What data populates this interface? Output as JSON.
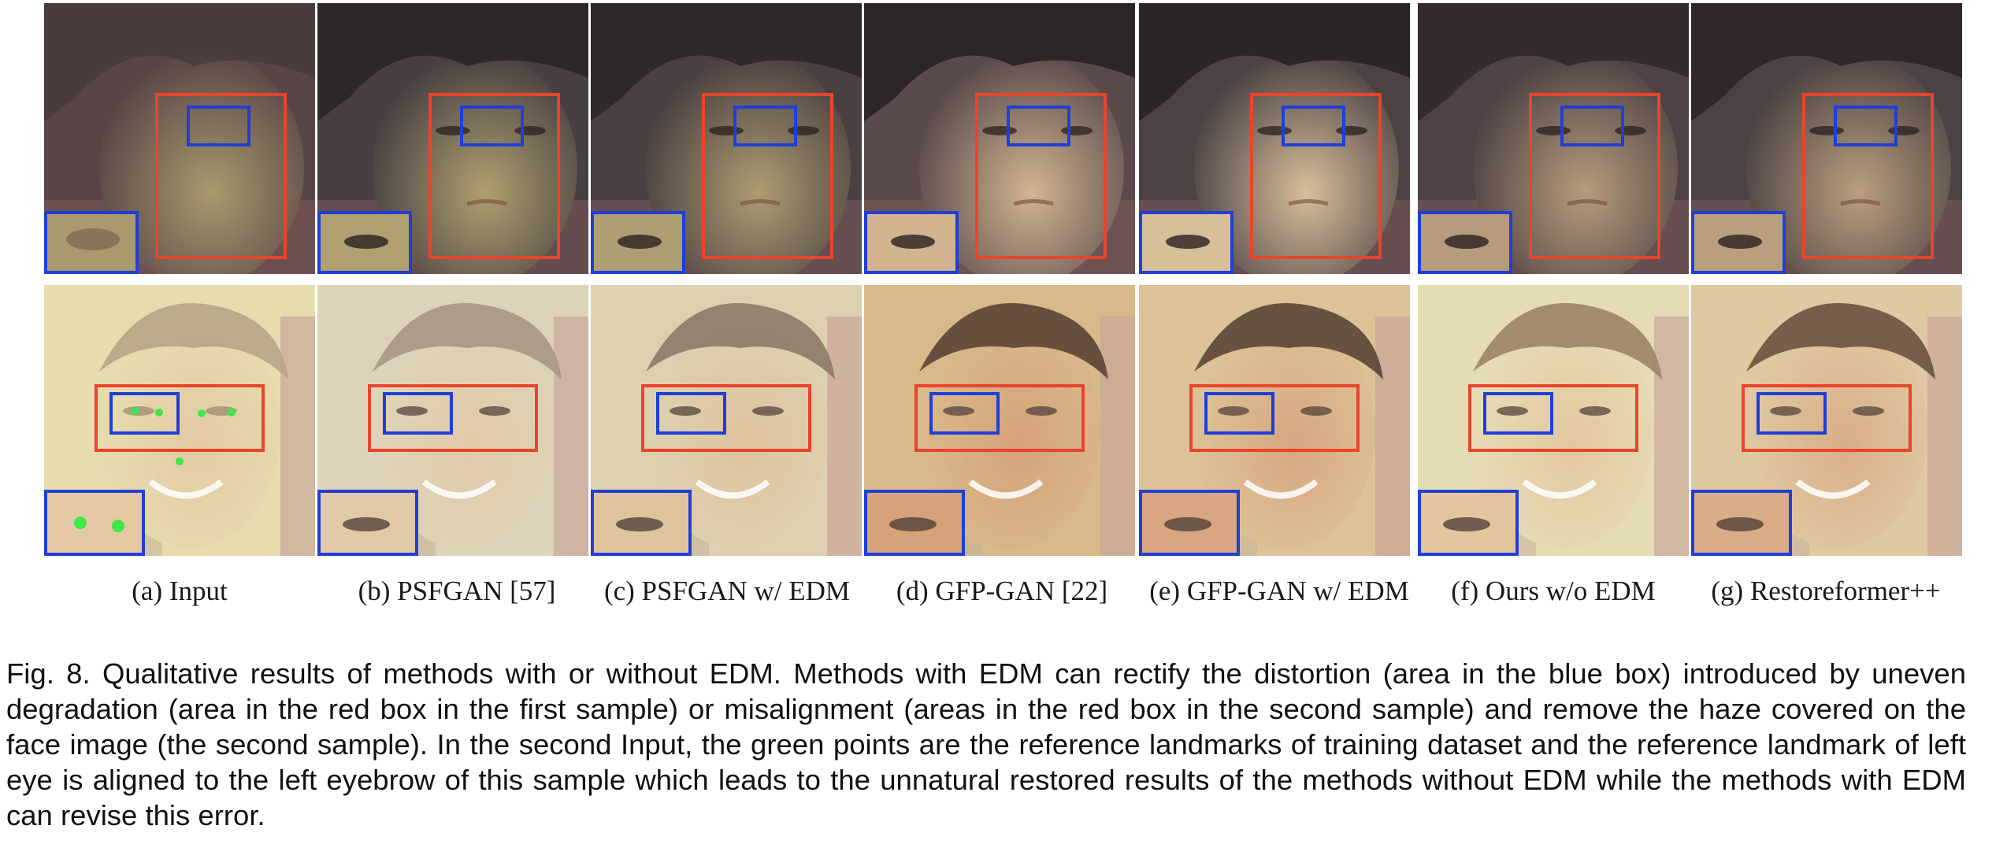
{
  "figure": {
    "panels": [
      {
        "label": "(a) Input"
      },
      {
        "label": "(b) PSFGAN [57]"
      },
      {
        "label": "(c) PSFGAN w/ EDM"
      },
      {
        "label": "(d) GFP-GAN [22]"
      },
      {
        "label": "(e) GFP-GAN w/ EDM"
      },
      {
        "label": "(f) Ours w/o EDM"
      },
      {
        "label": "(g) Restoreformer++"
      }
    ],
    "caption": "Fig. 8. Qualitative results of methods with or without EDM. Methods with EDM can rectify the distortion (area in the blue box) introduced by uneven degradation (area in the red box in the first sample) or misalignment (areas in the red box in the second sample) and remove the haze covered on the face image (the second sample). In the second Input, the green points are the reference landmarks of training dataset and the reference landmark of left eye is aligned to the left eyebrow of this sample which leads to the unnatural restored results of the methods without EDM while the methods with EDM can revise this error."
  },
  "colors": {
    "red_box": "#e8452c",
    "blue_box": "#1f3fd6",
    "landmark": "#3ee84a"
  }
}
